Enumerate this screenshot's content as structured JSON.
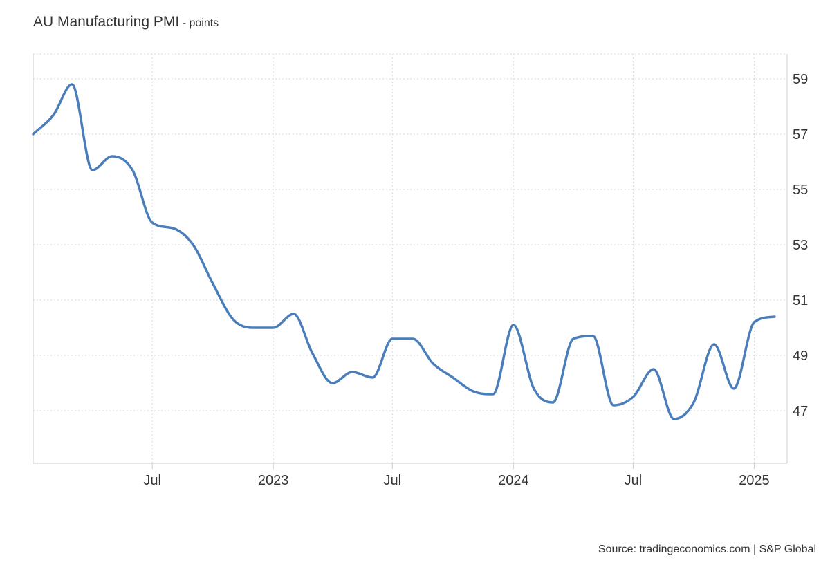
{
  "header": {
    "title": "AU Manufacturing PMI",
    "subtitle": " - points"
  },
  "footer": {
    "source": "Source: tradingeconomics.com | S&P Global"
  },
  "chart_data": {
    "type": "line",
    "title": "AU Manufacturing PMI",
    "subtitle": "points",
    "xlabel": "",
    "ylabel": "",
    "ylim": [
      45.1,
      59.9
    ],
    "xlim": [
      "2022-01-01",
      "2025-02-20"
    ],
    "y_ticks": [
      47,
      49,
      51,
      53,
      55,
      57,
      59
    ],
    "y_axis_side": "right",
    "x_ticks": [
      {
        "date": "2022-07-01",
        "label": "Jul"
      },
      {
        "date": "2023-01-01",
        "label": "2023"
      },
      {
        "date": "2023-07-01",
        "label": "Jul"
      },
      {
        "date": "2024-01-01",
        "label": "2024"
      },
      {
        "date": "2024-07-01",
        "label": "Jul"
      },
      {
        "date": "2025-01-01",
        "label": "2025"
      }
    ],
    "grid": true,
    "legend": "none",
    "series": [
      {
        "color": "#4a7ebb",
        "points": [
          {
            "x": "2022-01-01",
            "y": 57.0
          },
          {
            "x": "2022-02-01",
            "y": 57.7
          },
          {
            "x": "2022-03-01",
            "y": 58.8
          },
          {
            "x": "2022-04-01",
            "y": 55.7
          },
          {
            "x": "2022-05-01",
            "y": 56.2
          },
          {
            "x": "2022-06-01",
            "y": 55.7
          },
          {
            "x": "2022-07-01",
            "y": 53.8
          },
          {
            "x": "2022-08-01",
            "y": 53.6
          },
          {
            "x": "2022-09-01",
            "y": 53.0
          },
          {
            "x": "2022-10-01",
            "y": 51.6
          },
          {
            "x": "2022-11-01",
            "y": 50.3
          },
          {
            "x": "2022-12-01",
            "y": 50.0
          },
          {
            "x": "2023-01-01",
            "y": 50.0
          },
          {
            "x": "2023-02-01",
            "y": 50.5
          },
          {
            "x": "2023-03-01",
            "y": 49.1
          },
          {
            "x": "2023-04-01",
            "y": 48.0
          },
          {
            "x": "2023-05-01",
            "y": 48.4
          },
          {
            "x": "2023-06-01",
            "y": 48.2
          },
          {
            "x": "2023-07-01",
            "y": 49.6
          },
          {
            "x": "2023-08-01",
            "y": 49.6
          },
          {
            "x": "2023-09-01",
            "y": 48.7
          },
          {
            "x": "2023-10-01",
            "y": 48.2
          },
          {
            "x": "2023-11-01",
            "y": 47.7
          },
          {
            "x": "2023-12-01",
            "y": 47.6
          },
          {
            "x": "2024-01-01",
            "y": 50.1
          },
          {
            "x": "2024-02-01",
            "y": 47.8
          },
          {
            "x": "2024-03-01",
            "y": 47.3
          },
          {
            "x": "2024-04-01",
            "y": 49.6
          },
          {
            "x": "2024-05-01",
            "y": 49.7
          },
          {
            "x": "2024-06-01",
            "y": 47.2
          },
          {
            "x": "2024-07-01",
            "y": 47.5
          },
          {
            "x": "2024-08-01",
            "y": 48.5
          },
          {
            "x": "2024-09-01",
            "y": 46.7
          },
          {
            "x": "2024-10-01",
            "y": 47.3
          },
          {
            "x": "2024-11-01",
            "y": 49.4
          },
          {
            "x": "2024-12-01",
            "y": 47.8
          },
          {
            "x": "2025-01-01",
            "y": 50.2
          },
          {
            "x": "2025-02-01",
            "y": 50.4
          }
        ]
      }
    ],
    "colors": {
      "line": "#4a7ebb",
      "grid": "#d9d9d9",
      "axis": "#cccccc",
      "text": "#333333"
    }
  }
}
